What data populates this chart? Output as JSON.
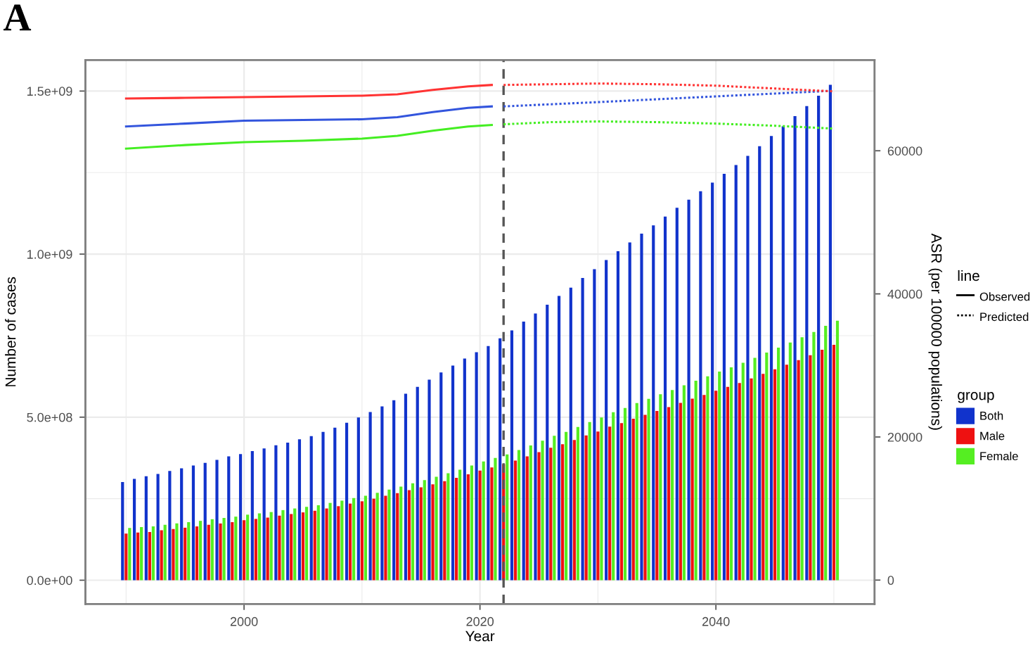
{
  "chart_data": {
    "type": "bar",
    "title": "A",
    "xlabel": "Year",
    "ylabel": "Number of cases",
    "y2label": "ASR (per 100000 populations)",
    "legend_title": [
      "line",
      "group"
    ],
    "legend": "right",
    "grid": true,
    "annotations": [
      "Observed",
      "Predicted"
    ],
    "xlim": [
      1986.55,
      2053.45
    ],
    "xticks": [
      2000,
      2020,
      2040
    ],
    "ylim": [
      -73000000.0,
      1595000000.0
    ],
    "yticks": [
      {
        "value": 0,
        "label": "0.0e+00"
      },
      {
        "value": 500000000.0,
        "label": "5.0e+08"
      },
      {
        "value": 1000000000.0,
        "label": "1.0e+09"
      },
      {
        "value": 1500000000.0,
        "label": "1.5e+09"
      }
    ],
    "y2lim": [
      -3343,
      72675
    ],
    "y2ticks": [
      0,
      20000,
      40000,
      60000
    ],
    "ref_lines": [
      {
        "axis": "x",
        "value": 2022,
        "color": "#555555",
        "line_style": "dashed"
      }
    ],
    "series": [
      {
        "name": "Both",
        "color": "#1133cc",
        "x": [
          1990,
          1991,
          1992,
          1993,
          1994,
          1995,
          1996,
          1997,
          1998,
          1999,
          2000,
          2001,
          2002,
          2003,
          2004,
          2005,
          2006,
          2007,
          2008,
          2009,
          2010,
          2011,
          2012,
          2013,
          2014,
          2015,
          2016,
          2017,
          2018,
          2019,
          2020,
          2021,
          2022,
          2023,
          2024,
          2025,
          2026,
          2027,
          2028,
          2029,
          2030,
          2031,
          2032,
          2033,
          2034,
          2035,
          2036,
          2037,
          2038,
          2039,
          2040,
          2041,
          2042,
          2043,
          2044,
          2045,
          2046,
          2047,
          2048,
          2049,
          2050
        ],
        "values": [
          301000000.0,
          311000000.0,
          319000000.0,
          326000000.0,
          335000000.0,
          343000000.0,
          352000000.0,
          360000000.0,
          369000000.0,
          380000000.0,
          387000000.0,
          396000000.0,
          404000000.0,
          414000000.0,
          422000000.0,
          432000000.0,
          442000000.0,
          455000000.0,
          468000000.0,
          483000000.0,
          499000000.0,
          516000000.0,
          533000000.0,
          552000000.0,
          572000000.0,
          593000000.0,
          615000000.0,
          637000000.0,
          658000000.0,
          680000000.0,
          699000000.0,
          718000000.0,
          742000000.0,
          766000000.0,
          793000000.0,
          818000000.0,
          845000000.0,
          872000000.0,
          897000000.0,
          927000000.0,
          954000000.0,
          982000000.0,
          1009000000.0,
          1036000000.0,
          1063000000.0,
          1088000000.0,
          1115000000.0,
          1142000000.0,
          1167000000.0,
          1193000000.0,
          1219000000.0,
          1246000000.0,
          1273000000.0,
          1301000000.0,
          1331000000.0,
          1362000000.0,
          1392000000.0,
          1423000000.0,
          1454000000.0,
          1486000000.0,
          1519000000.0
        ]
      },
      {
        "name": "Male",
        "color": "#ee1111",
        "x": [
          1990,
          1991,
          1992,
          1993,
          1994,
          1995,
          1996,
          1997,
          1998,
          1999,
          2000,
          2001,
          2002,
          2003,
          2004,
          2005,
          2006,
          2007,
          2008,
          2009,
          2010,
          2011,
          2012,
          2013,
          2014,
          2015,
          2016,
          2017,
          2018,
          2019,
          2020,
          2021,
          2022,
          2023,
          2024,
          2025,
          2026,
          2027,
          2028,
          2029,
          2030,
          2031,
          2032,
          2033,
          2034,
          2035,
          2036,
          2037,
          2038,
          2039,
          2040,
          2041,
          2042,
          2043,
          2044,
          2045,
          2046,
          2047,
          2048,
          2049,
          2050
        ],
        "values": [
          143000000.0,
          146000000.0,
          148000000.0,
          153000000.0,
          157000000.0,
          161000000.0,
          165000000.0,
          170000000.0,
          174000000.0,
          178000000.0,
          184000000.0,
          188000000.0,
          192000000.0,
          198000000.0,
          203000000.0,
          208000000.0,
          213000000.0,
          220000000.0,
          227000000.0,
          235000000.0,
          242000000.0,
          250000000.0,
          259000000.0,
          267000000.0,
          276000000.0,
          285000000.0,
          294000000.0,
          304000000.0,
          314000000.0,
          325000000.0,
          336000000.0,
          346000000.0,
          356000000.0,
          367000000.0,
          380000000.0,
          393000000.0,
          406000000.0,
          417000000.0,
          430000000.0,
          444000000.0,
          456000000.0,
          471000000.0,
          482000000.0,
          495000000.0,
          507000000.0,
          519000000.0,
          531000000.0,
          544000000.0,
          557000000.0,
          568000000.0,
          581000000.0,
          593000000.0,
          605000000.0,
          619000000.0,
          633000000.0,
          647000000.0,
          661000000.0,
          675000000.0,
          690000000.0,
          707000000.0,
          722000000.0
        ]
      },
      {
        "name": "Female",
        "color": "#55ee22",
        "x": [
          1990,
          1991,
          1992,
          1993,
          1994,
          1995,
          1996,
          1997,
          1998,
          1999,
          2000,
          2001,
          2002,
          2003,
          2004,
          2005,
          2006,
          2007,
          2008,
          2009,
          2010,
          2011,
          2012,
          2013,
          2014,
          2015,
          2016,
          2017,
          2018,
          2019,
          2020,
          2021,
          2022,
          2023,
          2024,
          2025,
          2026,
          2027,
          2028,
          2029,
          2030,
          2031,
          2032,
          2033,
          2034,
          2035,
          2036,
          2037,
          2038,
          2039,
          2040,
          2041,
          2042,
          2043,
          2044,
          2045,
          2046,
          2047,
          2048,
          2049,
          2050
        ],
        "values": [
          160000000.0,
          163000000.0,
          165000000.0,
          170000000.0,
          174000000.0,
          178000000.0,
          182000000.0,
          187000000.0,
          191000000.0,
          195000000.0,
          201000000.0,
          205000000.0,
          209000000.0,
          215000000.0,
          220000000.0,
          225000000.0,
          230000000.0,
          237000000.0,
          244000000.0,
          252000000.0,
          259000000.0,
          268000000.0,
          278000000.0,
          287000000.0,
          297000000.0,
          307000000.0,
          317000000.0,
          328000000.0,
          339000000.0,
          352000000.0,
          364000000.0,
          375000000.0,
          386000000.0,
          399000000.0,
          413000000.0,
          428000000.0,
          443000000.0,
          455000000.0,
          470000000.0,
          485000000.0,
          499000000.0,
          515000000.0,
          528000000.0,
          543000000.0,
          556000000.0,
          570000000.0,
          583000000.0,
          598000000.0,
          612000000.0,
          625000000.0,
          640000000.0,
          653000000.0,
          667000000.0,
          682000000.0,
          698000000.0,
          713000000.0,
          729000000.0,
          745000000.0,
          761000000.0,
          780000000.0,
          796000000.0
        ]
      },
      {
        "type": "line",
        "axis": "y2",
        "line_style": "solid",
        "color": "#3355dd",
        "x": [
          1990,
          1995,
          2000,
          2005,
          2010,
          2013,
          2016,
          2019,
          2021
        ],
        "values": [
          63400,
          63800,
          64200,
          64300,
          64400,
          64700,
          65400,
          66000,
          66200
        ]
      },
      {
        "type": "line",
        "axis": "y2",
        "line_style": "solid",
        "color": "#ff3333",
        "x": [
          1990,
          1995,
          2000,
          2005,
          2010,
          2013,
          2016,
          2019,
          2021
        ],
        "values": [
          67300,
          67400,
          67500,
          67600,
          67700,
          67900,
          68500,
          69000,
          69200
        ]
      },
      {
        "type": "line",
        "axis": "y2",
        "line_style": "solid",
        "color": "#44ee22",
        "x": [
          1990,
          1995,
          2000,
          2005,
          2010,
          2013,
          2016,
          2019,
          2021
        ],
        "values": [
          60300,
          60800,
          61200,
          61400,
          61700,
          62100,
          62800,
          63400,
          63600
        ]
      },
      {
        "type": "line",
        "axis": "y2",
        "line_style": "dotted",
        "color": "#3355dd",
        "x": [
          2022,
          2026,
          2030,
          2035,
          2040,
          2045,
          2050
        ],
        "values": [
          66200,
          66500,
          66800,
          67200,
          67600,
          68000,
          68400
        ]
      },
      {
        "type": "line",
        "axis": "y2",
        "line_style": "dotted",
        "color": "#ff3333",
        "x": [
          2022,
          2026,
          2030,
          2035,
          2040,
          2045,
          2050
        ],
        "values": [
          69200,
          69300,
          69400,
          69300,
          69100,
          68700,
          68300
        ]
      },
      {
        "type": "line",
        "axis": "y2",
        "line_style": "dotted",
        "color": "#44ee22",
        "x": [
          2022,
          2026,
          2030,
          2035,
          2040,
          2045,
          2050
        ],
        "values": [
          63700,
          64000,
          64100,
          64000,
          63800,
          63500,
          63100
        ]
      }
    ]
  }
}
